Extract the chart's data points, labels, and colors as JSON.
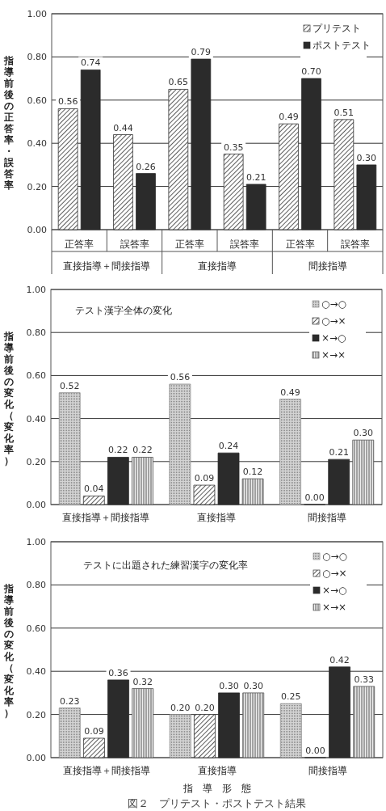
{
  "chart_data": [
    {
      "type": "bar",
      "ylabel": "指導前後の正答率・誤答率",
      "categories": [
        "正答率",
        "誤答率",
        "正答率",
        "誤答率",
        "正答率",
        "誤答率"
      ],
      "annotations": [
        "直接指導＋間接指導",
        "直接指導",
        "間接指導"
      ],
      "series": [
        {
          "name": "プリテスト",
          "color": "#333333",
          "values": [
            0.56,
            0.44,
            0.65,
            0.35,
            0.49,
            0.51
          ],
          "value_labels": [
            "0.56",
            "0.44",
            "0.65",
            "0.35",
            "0.49",
            "0.51"
          ]
        },
        {
          "name": "ポストテスト",
          "color": "#2b2b2b",
          "values": [
            0.74,
            0.26,
            0.79,
            0.21,
            0.7,
            0.3
          ],
          "value_labels": [
            "0.74",
            "0.26",
            "0.79",
            "0.21",
            "0.70",
            "0.30"
          ]
        }
      ],
      "ylim": [
        0,
        1
      ],
      "yticks": [
        {
          "value": 0,
          "label": "0.00"
        },
        {
          "value": 0.2,
          "label": "0.20"
        },
        {
          "value": 0.4,
          "label": "0.40"
        },
        {
          "value": 0.6,
          "label": "0.60"
        },
        {
          "value": 0.8,
          "label": "0.80"
        },
        {
          "value": 1,
          "label": "1.00"
        }
      ],
      "grid": "y",
      "legend": "top right"
    },
    {
      "type": "bar",
      "title": "テスト漢字全体の変化",
      "ylabel": "指導前後の変化（変化率）",
      "categories": [
        "直接指導＋間接指導",
        "直接指導",
        "間接指導"
      ],
      "series": [
        {
          "name": "○→○",
          "color": "#888888",
          "values": [
            0.52,
            0.56,
            0.49
          ],
          "value_labels": [
            "0.52",
            "0.56",
            "0.49"
          ]
        },
        {
          "name": "○→×",
          "color": "#333333",
          "values": [
            0.04,
            0.09,
            0.0
          ],
          "value_labels": [
            "0.04",
            "0.09",
            "0.00"
          ]
        },
        {
          "name": "×→○",
          "color": "#2b2b2b",
          "values": [
            0.22,
            0.24,
            0.21
          ],
          "value_labels": [
            "0.22",
            "0.24",
            "0.21"
          ]
        },
        {
          "name": "×→×",
          "color": "#555555",
          "values": [
            0.22,
            0.12,
            0.3
          ],
          "value_labels": [
            "0.22",
            "0.12",
            "0.30"
          ]
        }
      ],
      "ylim": [
        0,
        1
      ],
      "yticks": [
        {
          "value": 0,
          "label": "0.00"
        },
        {
          "value": 0.2,
          "label": "0.20"
        },
        {
          "value": 0.4,
          "label": "0.40"
        },
        {
          "value": 0.6,
          "label": "0.60"
        },
        {
          "value": 0.8,
          "label": "0.80"
        },
        {
          "value": 1,
          "label": "1.00"
        }
      ],
      "grid": "y",
      "legend": "top right"
    },
    {
      "type": "bar",
      "title": "テストに出題された練習漢字の変化率",
      "ylabel": "指導前後の変化（変化率）",
      "xlabel": "指　導　形　態",
      "categories": [
        "直接指導＋間接指導",
        "直接指導",
        "間接指導"
      ],
      "annotations": [
        "図２　プリテスト・ポストテスト結果"
      ],
      "series": [
        {
          "name": "○→○",
          "color": "#888888",
          "values": [
            0.23,
            0.2,
            0.25
          ],
          "value_labels": [
            "0.23",
            "0.20",
            "0.25"
          ]
        },
        {
          "name": "○→×",
          "color": "#333333",
          "values": [
            0.09,
            0.2,
            0.0
          ],
          "value_labels": [
            "0.09",
            "0.20",
            "0.00"
          ]
        },
        {
          "name": "×→○",
          "color": "#2b2b2b",
          "values": [
            0.36,
            0.3,
            0.42
          ],
          "value_labels": [
            "0.36",
            "0.30",
            "0.42"
          ]
        },
        {
          "name": "×→×",
          "color": "#555555",
          "values": [
            0.32,
            0.3,
            0.33
          ],
          "value_labels": [
            "0.32",
            "0.30",
            "0.33"
          ]
        }
      ],
      "ylim": [
        0,
        1
      ],
      "yticks": [
        {
          "value": 0,
          "label": "0.00"
        },
        {
          "value": 0.2,
          "label": "0.20"
        },
        {
          "value": 0.4,
          "label": "0.40"
        },
        {
          "value": 0.6,
          "label": "0.60"
        },
        {
          "value": 0.8,
          "label": "0.80"
        },
        {
          "value": 1,
          "label": "1.00"
        }
      ],
      "grid": "y",
      "legend": "top right"
    }
  ]
}
